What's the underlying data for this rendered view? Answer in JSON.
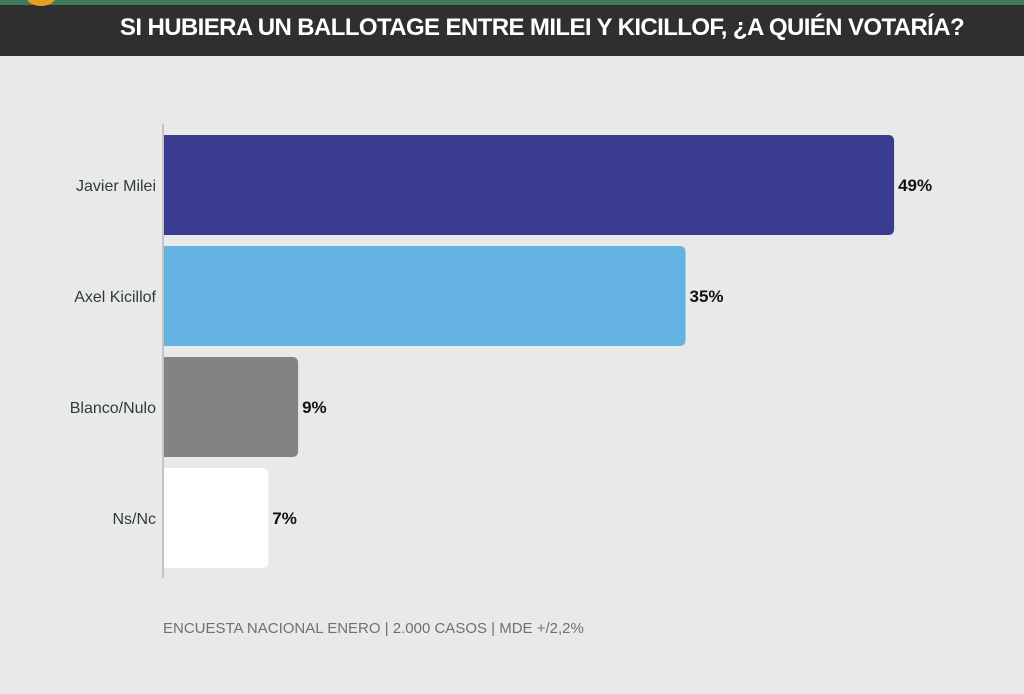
{
  "header": {
    "title": "SI HUBIERA UN BALLOTAGE ENTRE MILEI Y KICILLOF, ¿A QUIÉN VOTARÍA?"
  },
  "footnote": "ENCUESTA NACIONAL ENERO | 2.000 CASOS | MDE +/2,2%",
  "colors": {
    "background": "#e9e9e9",
    "header_bg": "#2f2f2f",
    "header_accent": "#3f7a5a",
    "axis": "#c4c4c4"
  },
  "chart_data": {
    "type": "bar",
    "orientation": "horizontal",
    "title": "SI HUBIERA UN BALLOTAGE ENTRE MILEI Y KICILLOF, ¿A QUIÉN VOTARÍA?",
    "categories": [
      "Javier Milei",
      "Axel Kicillof",
      "Blanco/Nulo",
      "Ns/Nc"
    ],
    "values": [
      49,
      35,
      9,
      7
    ],
    "value_labels": [
      "49%",
      "35%",
      "9%",
      "7%"
    ],
    "colors": [
      "#3a3d8f",
      "#63b2e2",
      "#848282",
      "#ffffff"
    ],
    "unit": "%",
    "xlim": [
      0,
      50
    ],
    "grid": false,
    "legend": "none"
  }
}
